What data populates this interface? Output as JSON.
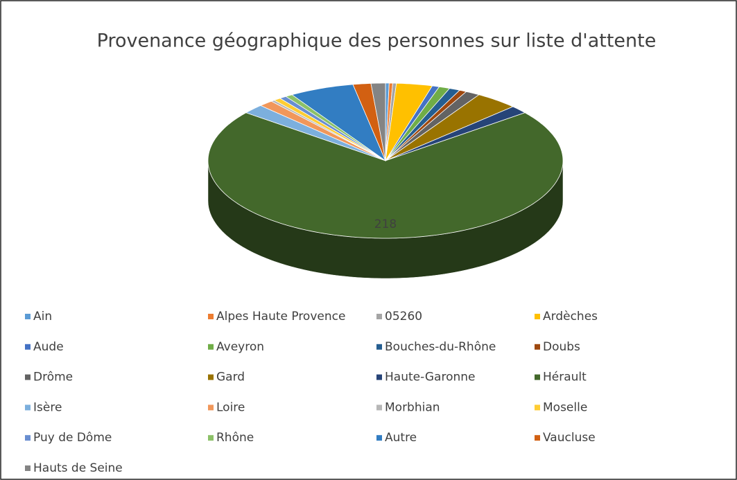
{
  "chart_data": {
    "type": "pie3d",
    "title": "Provenance géographique des personnes sur liste d'attente",
    "categories": [
      "Ain",
      "Alpes Haute Provence",
      "05260",
      "Ardèches",
      "Aude",
      "Aveyron",
      "Bouches-du-Rhône",
      "Doubs",
      "Drôme",
      "Gard",
      "Haute-Garonne",
      "Hérault",
      "Isère",
      "Loire",
      "Morbhian",
      "Moselle",
      "Puy de Dôme",
      "Rhône",
      "Autre",
      "Vaucluse",
      "Hauts de Seine"
    ],
    "values": [
      1,
      1,
      1,
      10,
      2,
      3,
      3,
      2,
      4,
      12,
      5,
      218,
      6,
      4,
      1,
      2,
      2,
      2,
      18,
      5,
      4
    ],
    "colors": [
      "#5B9BD5",
      "#ED7D31",
      "#A5A5A5",
      "#FFC000",
      "#4472C4",
      "#70AD47",
      "#255E91",
      "#9E480E",
      "#636363",
      "#997300",
      "#264478",
      "#43682B",
      "#7CAFDD",
      "#F1975A",
      "#B7B7B7",
      "#FFCD33",
      "#698ED0",
      "#8CC168",
      "#327DC2",
      "#D26012",
      "#848484"
    ],
    "labeled": [
      11
    ],
    "legend": "bottom"
  }
}
